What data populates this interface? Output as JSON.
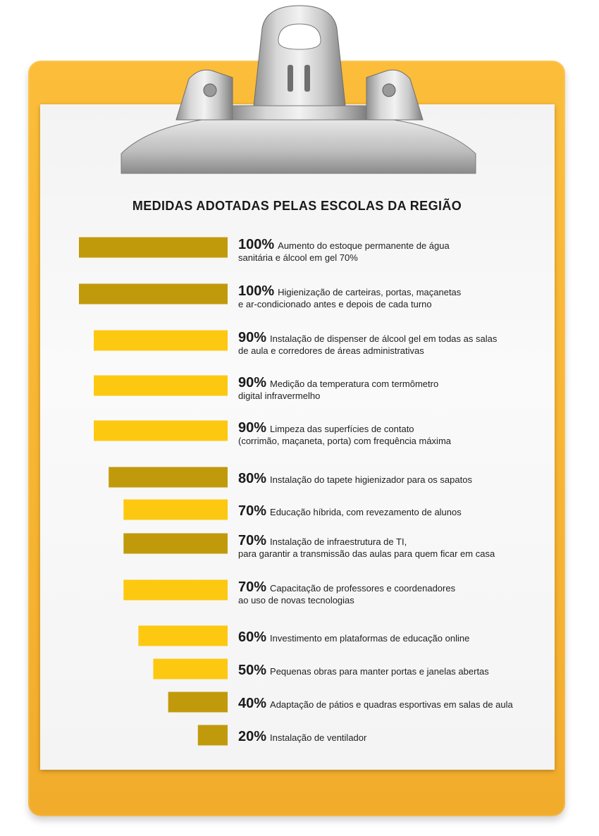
{
  "chart_data": {
    "type": "bar",
    "orientation": "horizontal",
    "title": "MEDIDAS ADOTADAS PELAS ESCOLAS DA REGIÃO",
    "xlim": [
      0,
      100
    ],
    "unit": "%",
    "grid": false,
    "legend": "none",
    "colors": {
      "dark": "#c19a0c",
      "light": "#fdc810"
    },
    "items": [
      {
        "value": 100,
        "label": "100%",
        "lines": [
          "Aumento do estoque permanente de água",
          "sanitária e álcool em gel 70%"
        ],
        "color": "dark"
      },
      {
        "value": 100,
        "label": "100%",
        "lines": [
          "Higienização de carteiras, portas, maçanetas",
          "e ar-condicionado antes e depois de cada turno"
        ],
        "color": "dark"
      },
      {
        "value": 90,
        "label": "90%",
        "lines": [
          "Instalação de dispenser de álcool gel em todas as salas",
          "de aula e corredores de áreas administrativas"
        ],
        "color": "light"
      },
      {
        "value": 90,
        "label": "90%",
        "lines": [
          "Medição da temperatura com termômetro",
          "digital infravermelho"
        ],
        "color": "light"
      },
      {
        "value": 90,
        "label": "90%",
        "lines": [
          "Limpeza das superfícies de contato",
          "(corrimão, maçaneta, porta) com frequência máxima"
        ],
        "color": "light"
      },
      {
        "value": 80,
        "label": "80%",
        "lines": [
          "Instalação do tapete higienizador para os sapatos"
        ],
        "color": "dark"
      },
      {
        "value": 70,
        "label": "70%",
        "lines": [
          "Educação híbrida, com revezamento de alunos"
        ],
        "color": "light"
      },
      {
        "value": 70,
        "label": "70%",
        "lines": [
          "Instalação de infraestrutura de TI,",
          "para garantir a transmissão das aulas para quem ficar em casa"
        ],
        "color": "dark"
      },
      {
        "value": 70,
        "label": "70%",
        "lines": [
          "Capacitação de professores e coordenadores",
          "ao uso de novas tecnologias"
        ],
        "color": "light"
      },
      {
        "value": 60,
        "label": "60%",
        "lines": [
          "Investimento em plataformas de educação online"
        ],
        "color": "light"
      },
      {
        "value": 50,
        "label": "50%",
        "lines": [
          "Pequenas obras para manter portas e janelas abertas"
        ],
        "color": "light"
      },
      {
        "value": 40,
        "label": "40%",
        "lines": [
          "Adaptação de pátios e quadras esportivas em salas de aula"
        ],
        "color": "dark"
      },
      {
        "value": 20,
        "label": "20%",
        "lines": [
          "Instalação de ventilador"
        ],
        "color": "dark"
      }
    ]
  }
}
